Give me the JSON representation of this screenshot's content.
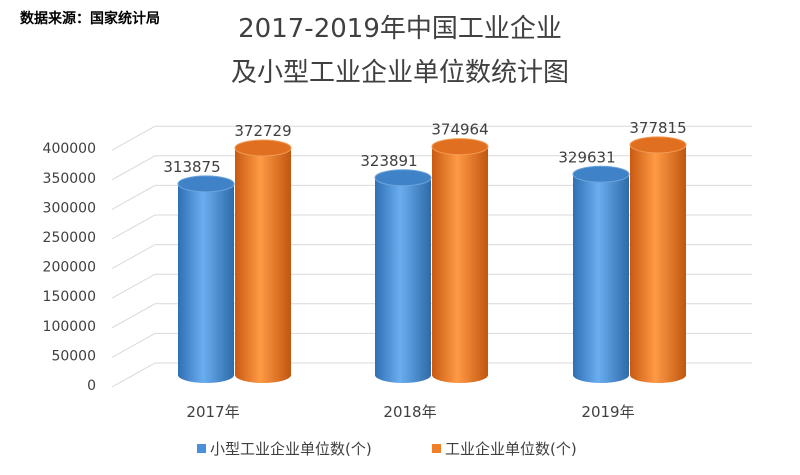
{
  "source": "数据来源：国家统计局",
  "chart_data": {
    "type": "bar",
    "title_lines": [
      "2017-2019年中国工业企业",
      "及小型工业企业单位数统计图"
    ],
    "categories": [
      "2017年",
      "2018年",
      "2019年"
    ],
    "series": [
      {
        "name": "小型工业企业单位数(个)",
        "values": [
          313875,
          323891,
          329631
        ],
        "color": "#4a90d9"
      },
      {
        "name": "工业企业单位数(个)",
        "values": [
          372729,
          374964,
          377815
        ],
        "color": "#f07f2a"
      }
    ],
    "yticks": [
      "0",
      "50000",
      "100000",
      "150000",
      "200000",
      "250000",
      "300000",
      "350000",
      "400000"
    ],
    "ylim": [
      0,
      400000
    ],
    "grid": true,
    "legend": "bottom",
    "style": "3d-cylinder"
  }
}
